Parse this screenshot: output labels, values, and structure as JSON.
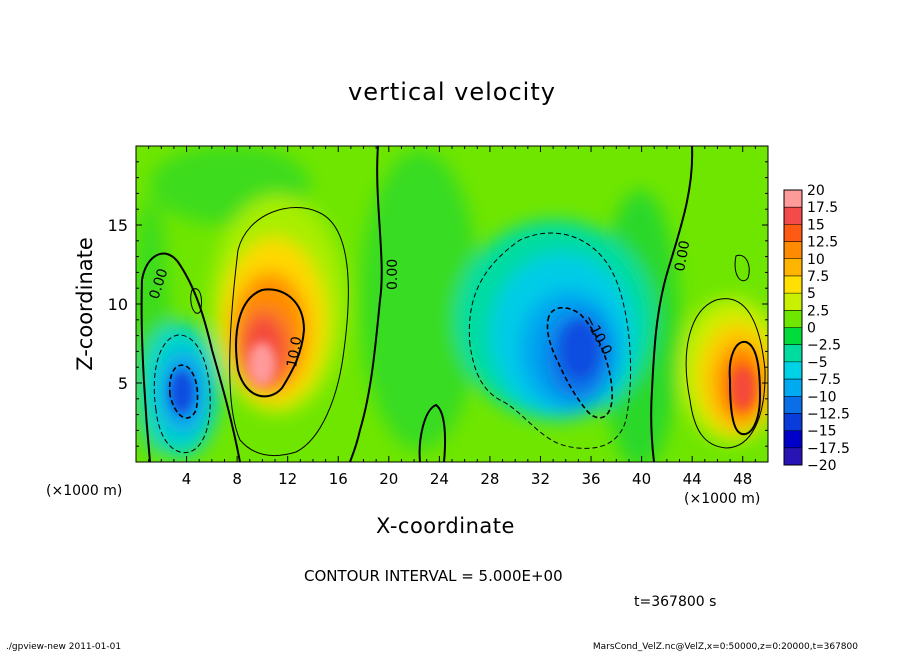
{
  "chart_data": {
    "type": "heatmap",
    "title": "vertical velocity",
    "xlabel": "X-coordinate",
    "ylabel": "Z-coordinate",
    "x_unit_left": "(×1000 m)",
    "x_unit_right": "(×1000 m)",
    "xlim": [
      0,
      50
    ],
    "ylim": [
      0,
      20
    ],
    "x_ticks": [
      4,
      8,
      12,
      16,
      20,
      24,
      28,
      32,
      36,
      40,
      44,
      48
    ],
    "y_ticks": [
      5,
      10,
      15
    ],
    "colorbar": {
      "labels": [
        "20",
        "17.5",
        "15",
        "12.5",
        "10",
        "7.5",
        "5",
        "2.5",
        "0",
        "−2.5",
        "−5",
        "−7.5",
        "−10",
        "−12.5",
        "−15",
        "−17.5",
        "−20"
      ],
      "colors": [
        "#ff9a9a",
        "#f44a4a",
        "#ff5a14",
        "#ff8c00",
        "#ffb400",
        "#ffe000",
        "#c8f000",
        "#6ee600",
        "#00dc3c",
        "#00dca0",
        "#00d2e6",
        "#00aaf0",
        "#0a6ee6",
        "#0a3cdc",
        "#0000c8",
        "#2814b4",
        "#7000b4"
      ]
    },
    "contour_labels": [
      "0.00",
      "10.0",
      "0.00",
      "−10.0",
      "0.00"
    ],
    "features": [
      {
        "kind": "updraft",
        "x": 10,
        "z": 7,
        "peak": 20
      },
      {
        "kind": "downdraft",
        "x": 4,
        "z": 5,
        "peak": -12
      },
      {
        "kind": "downdraft",
        "x": 34,
        "z": 7.5,
        "peak": -12
      },
      {
        "kind": "updraft",
        "x": 48,
        "z": 4.5,
        "peak": 16
      }
    ]
  },
  "annotations": {
    "contour_interval": "CONTOUR INTERVAL = 5.000E+00",
    "time": "t=367800 s",
    "footer_left": "./gpview-new  2011-01-01",
    "footer_right": "MarsCond_VelZ.nc@VelZ,x=0:50000,z=0:20000,t=367800"
  }
}
